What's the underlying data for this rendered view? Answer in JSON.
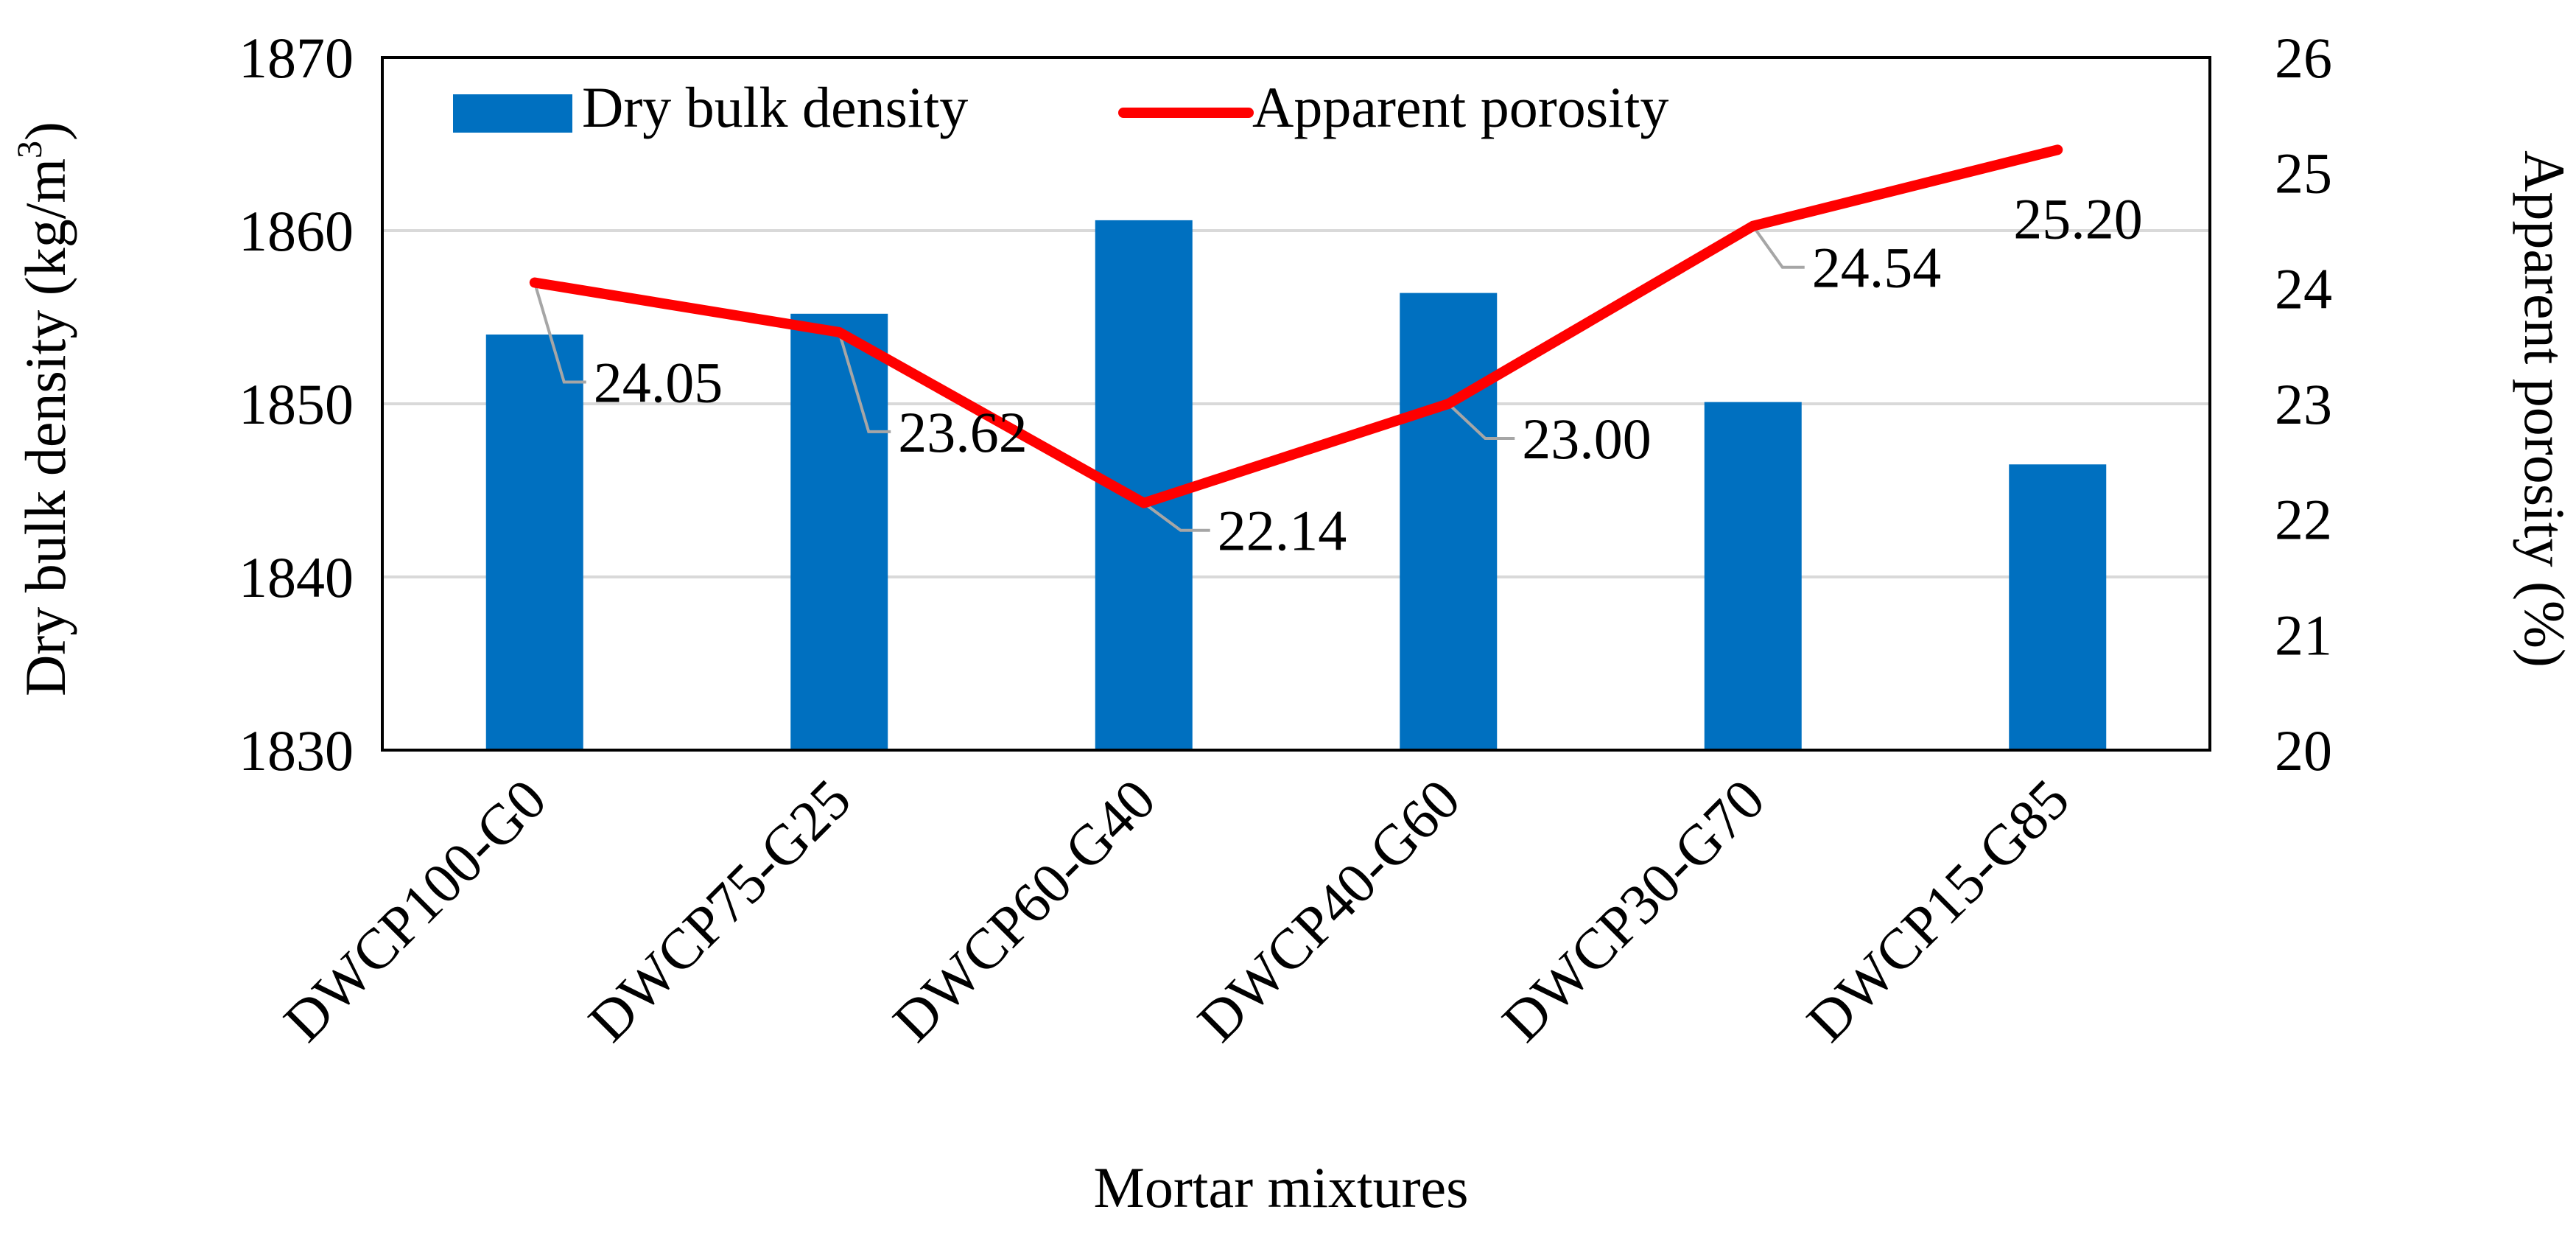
{
  "chart_data": {
    "type": "bar",
    "title": "",
    "xlabel": "Mortar mixtures",
    "ylabel": "Dry bulk density (kg/m",
    "ylabel_sup": "3",
    "ylabel_close": ")",
    "y2label": "Apparent porosity (%)",
    "categories": [
      "DWCP100-G0",
      "DWCP75-G25",
      "DWCP60-G40",
      "DWCP40-G60",
      "DWCP30-G70",
      "DWCP15-G85"
    ],
    "ylim": [
      1830,
      1870
    ],
    "y2lim": [
      20,
      26
    ],
    "yticks": [
      "1830",
      "1840",
      "1850",
      "1860",
      "1870"
    ],
    "y2ticks": [
      "20",
      "21",
      "22",
      "23",
      "24",
      "25",
      "26"
    ],
    "grid": true,
    "legend_position": "top",
    "series": [
      {
        "name": "Dry bulk density",
        "type": "bar",
        "axis": "left",
        "color": "#0070C0",
        "values": [
          1854.0,
          1855.2,
          1860.6,
          1856.4,
          1850.1,
          1846.5
        ]
      },
      {
        "name": "Apparent porosity",
        "type": "line",
        "axis": "right",
        "color": "#FF0000",
        "values": [
          24.05,
          23.62,
          22.14,
          23.0,
          24.54,
          25.2
        ],
        "labels": [
          "24.05",
          "23.62",
          "22.14",
          "23.00",
          "24.54",
          "25.20"
        ]
      }
    ]
  }
}
